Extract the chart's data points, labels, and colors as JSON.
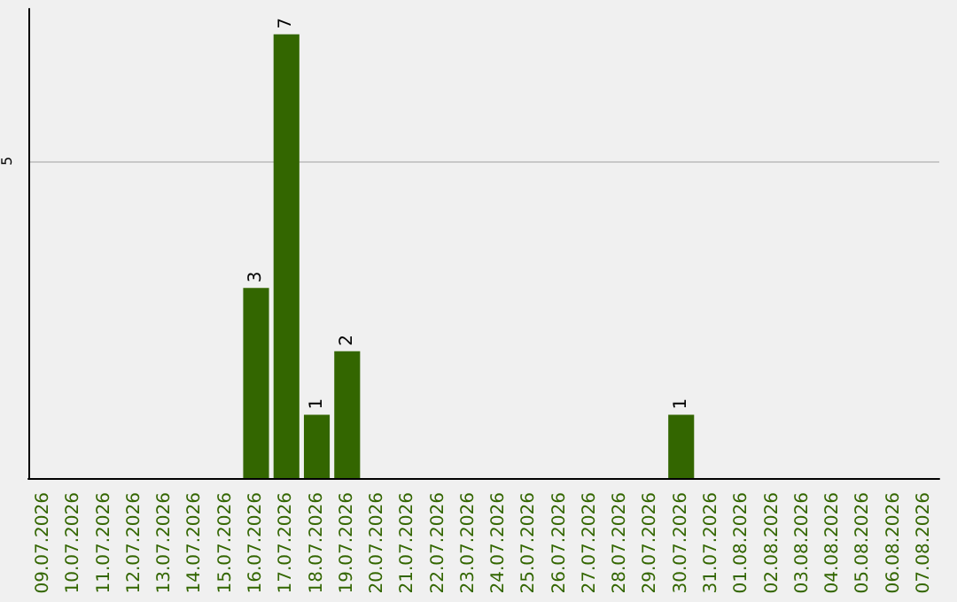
{
  "chart_data": {
    "type": "bar",
    "categories": [
      "09.07.2026",
      "10.07.2026",
      "11.07.2026",
      "12.07.2026",
      "13.07.2026",
      "14.07.2026",
      "15.07.2026",
      "16.07.2026",
      "17.07.2026",
      "18.07.2026",
      "19.07.2026",
      "20.07.2026",
      "21.07.2026",
      "22.07.2026",
      "23.07.2026",
      "24.07.2026",
      "25.07.2026",
      "26.07.2026",
      "27.07.2026",
      "28.07.2026",
      "29.07.2026",
      "30.07.2026",
      "31.07.2026",
      "01.08.2026",
      "02.08.2026",
      "03.08.2026",
      "04.08.2026",
      "05.08.2026",
      "06.08.2026",
      "07.08.2026"
    ],
    "values": [
      0,
      0,
      0,
      0,
      0,
      0,
      0,
      3,
      7,
      1,
      2,
      0,
      0,
      0,
      0,
      0,
      0,
      0,
      0,
      0,
      0,
      1,
      0,
      0,
      0,
      0,
      0,
      0,
      0,
      0
    ],
    "value_labels": [
      null,
      null,
      null,
      null,
      null,
      null,
      null,
      "3",
      "7",
      "1",
      "2",
      null,
      null,
      null,
      null,
      null,
      null,
      null,
      null,
      null,
      null,
      "1",
      null,
      null,
      null,
      null,
      null,
      null,
      null,
      null
    ],
    "color": "#336600",
    "ylim": [
      0,
      7.4
    ],
    "yticks": [
      5
    ],
    "grid": "y"
  }
}
